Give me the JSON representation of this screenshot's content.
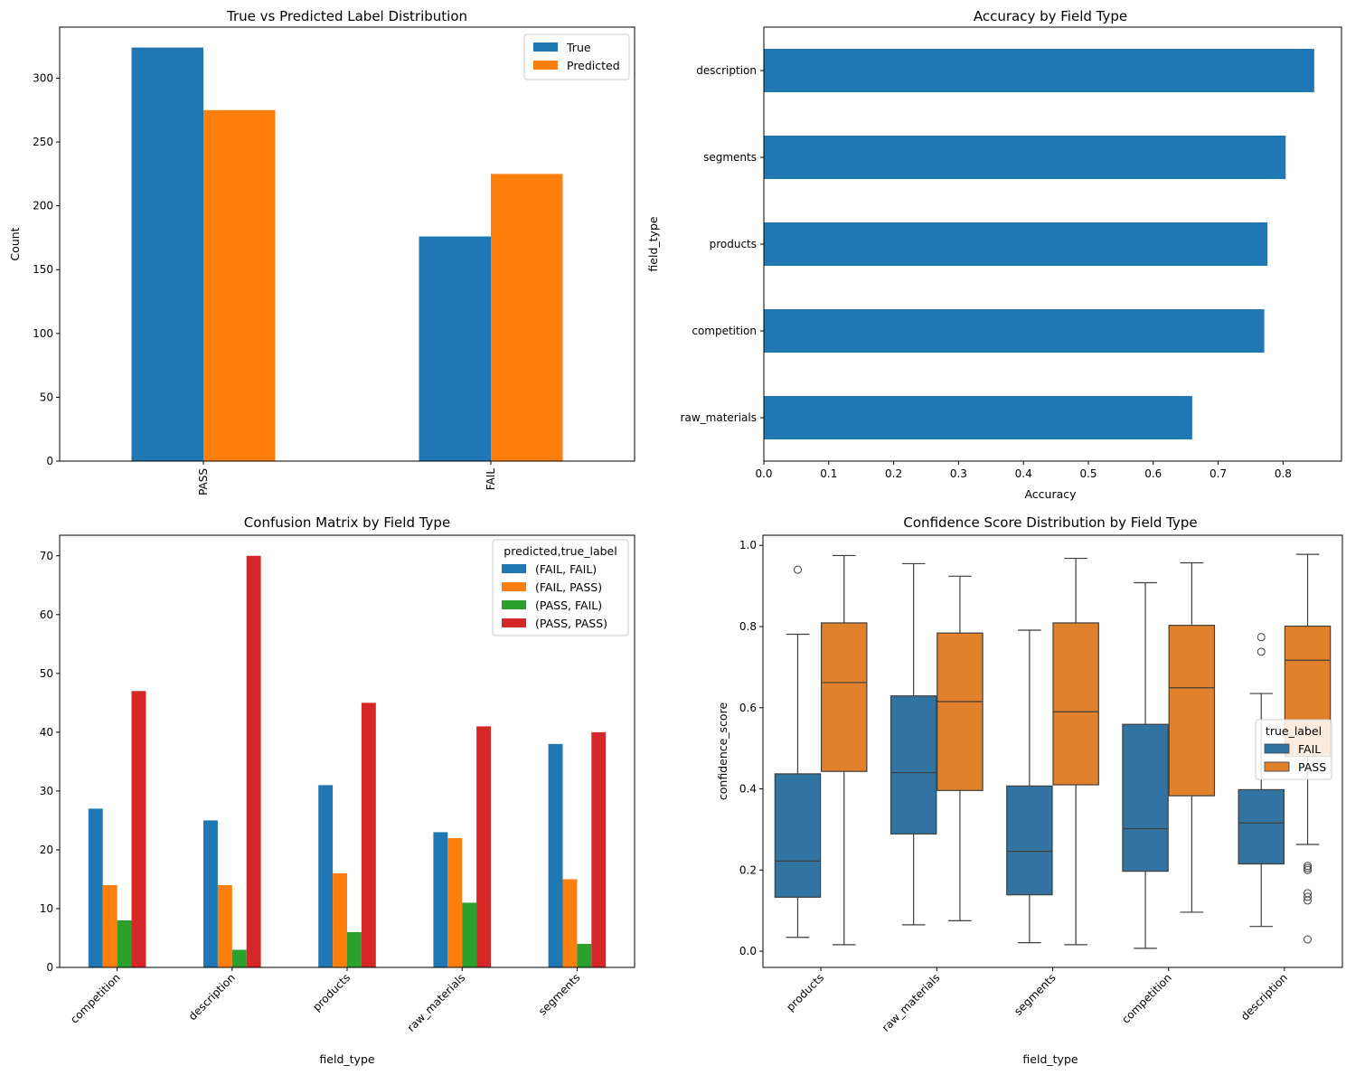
{
  "chart_data": [
    {
      "id": "label-distribution",
      "type": "bar",
      "title": "True vs Predicted Label Distribution",
      "xlabel": "",
      "ylabel": "Count",
      "categories": [
        "PASS",
        "FAIL"
      ],
      "series": [
        {
          "name": "True",
          "color": "#1f77b4",
          "values": [
            324,
            176
          ]
        },
        {
          "name": "Predicted",
          "color": "#ff7f0e",
          "values": [
            275,
            225
          ]
        }
      ],
      "ylim": [
        0,
        340
      ],
      "yticks": [
        0,
        50,
        100,
        150,
        200,
        250,
        300
      ],
      "xtick_rotation": 90,
      "legend": {
        "position": "top-right",
        "title": ""
      },
      "grid": false
    },
    {
      "id": "accuracy-by-field",
      "type": "bar",
      "orientation": "horizontal",
      "title": "Accuracy by Field Type",
      "xlabel": "Accuracy",
      "ylabel": "field_type",
      "categories": [
        "raw_materials",
        "competition",
        "products",
        "segments",
        "description"
      ],
      "values": [
        0.66,
        0.771,
        0.776,
        0.804,
        0.848
      ],
      "color": "#1f77b4",
      "xlim": [
        0,
        0.89
      ],
      "xticks": [
        "0.0",
        "0.1",
        "0.2",
        "0.3",
        "0.4",
        "0.5",
        "0.6",
        "0.7",
        "0.8"
      ],
      "grid": false
    },
    {
      "id": "confusion-by-field",
      "type": "bar",
      "title": "Confusion Matrix by Field Type",
      "xlabel": "field_type",
      "ylabel": "",
      "categories": [
        "competition",
        "description",
        "products",
        "raw_materials",
        "segments"
      ],
      "series": [
        {
          "name": "(FAIL, FAIL)",
          "color": "#1f77b4",
          "values": [
            27,
            25,
            31,
            23,
            38
          ]
        },
        {
          "name": "(FAIL, PASS)",
          "color": "#ff7f0e",
          "values": [
            14,
            14,
            16,
            22,
            15
          ]
        },
        {
          "name": "(PASS, FAIL)",
          "color": "#2ca02c",
          "values": [
            8,
            3,
            6,
            11,
            4
          ]
        },
        {
          "name": "(PASS, PASS)",
          "color": "#d62728",
          "values": [
            47,
            70,
            45,
            41,
            40
          ]
        }
      ],
      "ylim": [
        0,
        73.5
      ],
      "yticks": [
        0,
        10,
        20,
        30,
        40,
        50,
        60,
        70
      ],
      "xtick_rotation": 45,
      "legend": {
        "position": "top-right",
        "title": "predicted,true_label"
      },
      "grid": false
    },
    {
      "id": "confidence-distribution",
      "type": "box",
      "title": "Confidence Score Distribution by Field Type",
      "xlabel": "field_type",
      "ylabel": "confidence_score",
      "categories": [
        "products",
        "raw_materials",
        "segments",
        "competition",
        "description"
      ],
      "hue": [
        {
          "name": "FAIL",
          "color": "#3274a1"
        },
        {
          "name": "PASS",
          "color": "#e1812c"
        }
      ],
      "boxes": [
        {
          "category": "products",
          "hue": "FAIL",
          "whislo": 0.034,
          "q1": 0.133,
          "med": 0.222,
          "q3": 0.437,
          "whishi": 0.781,
          "fliers": [
            0.94
          ]
        },
        {
          "category": "products",
          "hue": "PASS",
          "whislo": 0.016,
          "q1": 0.443,
          "med": 0.662,
          "q3": 0.809,
          "whishi": 0.975,
          "fliers": []
        },
        {
          "category": "raw_materials",
          "hue": "FAIL",
          "whislo": 0.065,
          "q1": 0.289,
          "med": 0.44,
          "q3": 0.629,
          "whishi": 0.955,
          "fliers": []
        },
        {
          "category": "raw_materials",
          "hue": "PASS",
          "whislo": 0.075,
          "q1": 0.396,
          "med": 0.615,
          "q3": 0.784,
          "whishi": 0.924,
          "fliers": []
        },
        {
          "category": "segments",
          "hue": "FAIL",
          "whislo": 0.021,
          "q1": 0.139,
          "med": 0.246,
          "q3": 0.407,
          "whishi": 0.791,
          "fliers": []
        },
        {
          "category": "segments",
          "hue": "PASS",
          "whislo": 0.016,
          "q1": 0.41,
          "med": 0.59,
          "q3": 0.809,
          "whishi": 0.968,
          "fliers": []
        },
        {
          "category": "competition",
          "hue": "FAIL",
          "whislo": 0.007,
          "q1": 0.197,
          "med": 0.302,
          "q3": 0.559,
          "whishi": 0.908,
          "fliers": []
        },
        {
          "category": "competition",
          "hue": "PASS",
          "whislo": 0.096,
          "q1": 0.383,
          "med": 0.649,
          "q3": 0.803,
          "whishi": 0.957,
          "fliers": []
        },
        {
          "category": "description",
          "hue": "FAIL",
          "whislo": 0.061,
          "q1": 0.215,
          "med": 0.316,
          "q3": 0.398,
          "whishi": 0.635,
          "fliers": [
            0.774,
            0.738
          ]
        },
        {
          "category": "description",
          "hue": "PASS",
          "whislo": 0.263,
          "q1": 0.48,
          "med": 0.717,
          "q3": 0.801,
          "whishi": 0.978,
          "fliers": [
            0.21,
            0.205,
            0.2,
            0.143,
            0.134,
            0.125,
            0.029
          ]
        }
      ],
      "ylim": [
        -0.04,
        1.025
      ],
      "yticks": [
        "0.0",
        "0.2",
        "0.4",
        "0.6",
        "0.8",
        "1.0"
      ],
      "xtick_rotation": 45,
      "legend": {
        "position": "center-right",
        "title": "true_label"
      },
      "grid": false
    }
  ]
}
